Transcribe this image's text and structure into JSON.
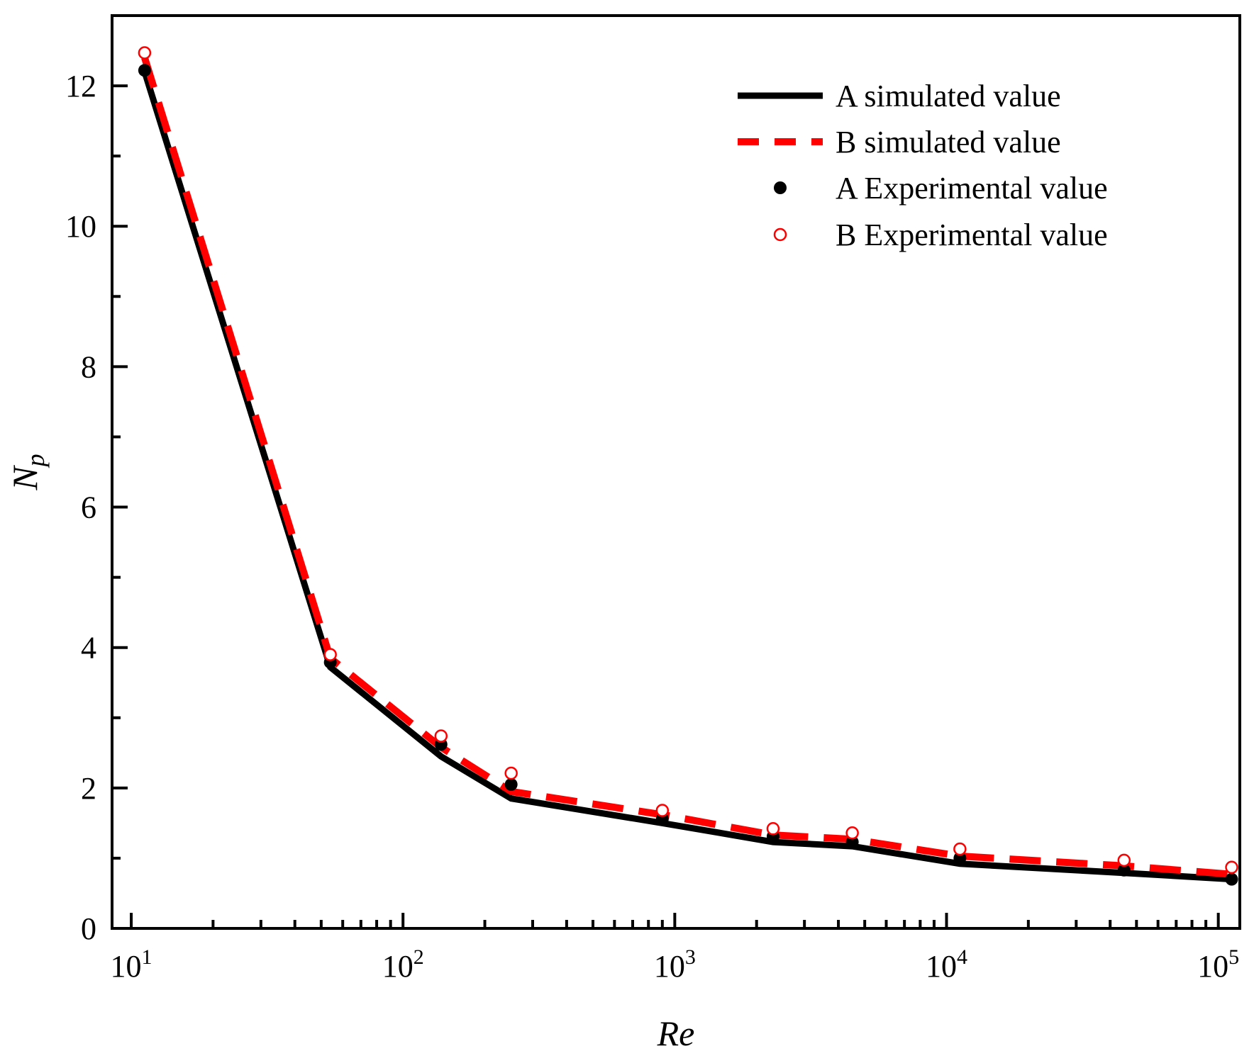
{
  "chart_data": {
    "type": "line",
    "x_scale": "log",
    "xlabel": "Re",
    "ylabel": {
      "main": "N",
      "sub": "p"
    },
    "xlim": [
      8.5,
      120000
    ],
    "ylim": [
      0,
      13
    ],
    "x_ticks": [
      {
        "value": 10,
        "base": "10",
        "exp": "1"
      },
      {
        "value": 100,
        "base": "10",
        "exp": "2"
      },
      {
        "value": 1000,
        "base": "10",
        "exp": "3"
      },
      {
        "value": 10000,
        "base": "10",
        "exp": "4"
      },
      {
        "value": 100000,
        "base": "10",
        "exp": "5"
      }
    ],
    "y_ticks": [
      {
        "value": 0,
        "label": "0"
      },
      {
        "value": 2,
        "label": "2"
      },
      {
        "value": 4,
        "label": "4"
      },
      {
        "value": 6,
        "label": "6"
      },
      {
        "value": 8,
        "label": "8"
      },
      {
        "value": 10,
        "label": "10"
      },
      {
        "value": 12,
        "label": "12"
      }
    ],
    "legend_position": "top-right",
    "series": [
      {
        "name": "A simulated value",
        "kind": "line",
        "style": "solid",
        "color": "#000000",
        "x": [
          11.2,
          54,
          138,
          250,
          900,
          2300,
          4500,
          11200,
          45000,
          112000
        ],
        "y": [
          12.2,
          3.72,
          2.45,
          1.85,
          1.5,
          1.23,
          1.17,
          0.92,
          0.79,
          0.7
        ]
      },
      {
        "name": "B simulated value",
        "kind": "line",
        "style": "dashed",
        "color": "#ff0000",
        "x": [
          11.2,
          54,
          138,
          250,
          900,
          2300,
          4500,
          11200,
          45000,
          112000
        ],
        "y": [
          12.4,
          3.85,
          2.58,
          1.95,
          1.62,
          1.33,
          1.27,
          1.03,
          0.89,
          0.77
        ]
      },
      {
        "name": "A Experimental value",
        "kind": "scatter",
        "marker": "filled-circle",
        "color": "#000000",
        "x": [
          11.2,
          54,
          138,
          250,
          900,
          2300,
          4500,
          11200,
          45000,
          112000
        ],
        "y": [
          12.22,
          3.79,
          2.62,
          2.05,
          1.56,
          1.31,
          1.23,
          1.0,
          0.83,
          0.7
        ]
      },
      {
        "name": "B Experimental value",
        "kind": "scatter",
        "marker": "open-circle",
        "color": "#ff0000",
        "x": [
          11.2,
          54,
          138,
          250,
          900,
          2300,
          4500,
          11200,
          45000,
          112000
        ],
        "y": [
          12.47,
          3.9,
          2.74,
          2.21,
          1.68,
          1.42,
          1.36,
          1.13,
          0.97,
          0.87
        ]
      }
    ]
  }
}
